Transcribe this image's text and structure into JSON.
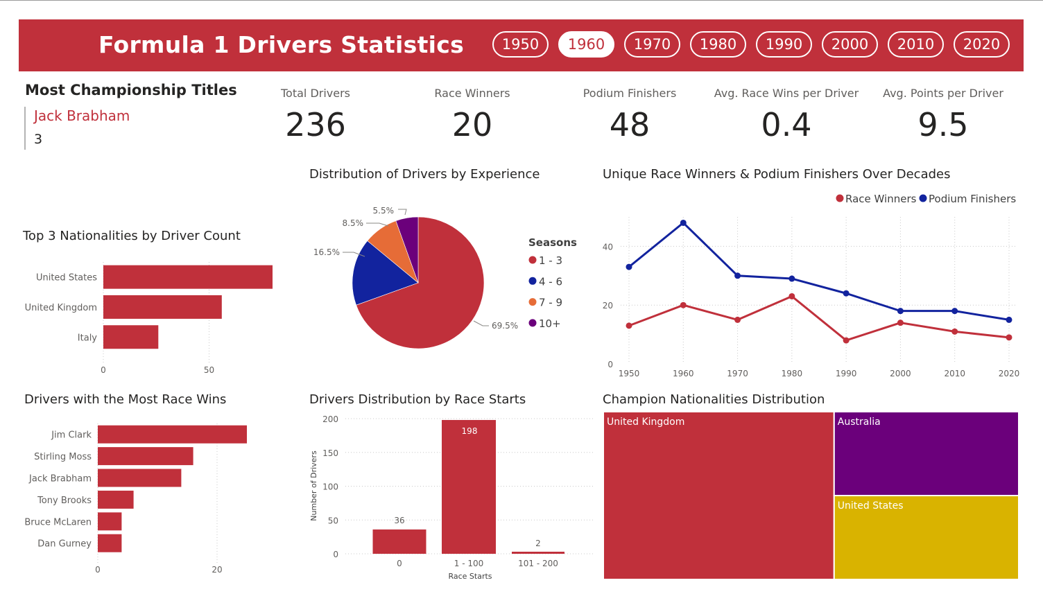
{
  "header": {
    "title": "Formula 1 Drivers Statistics",
    "decades": [
      {
        "label": "1950",
        "active": false
      },
      {
        "label": "1960",
        "active": true
      },
      {
        "label": "1970",
        "active": false
      },
      {
        "label": "1980",
        "active": false
      },
      {
        "label": "1990",
        "active": false
      },
      {
        "label": "2000",
        "active": false
      },
      {
        "label": "2010",
        "active": false
      },
      {
        "label": "2020",
        "active": false
      }
    ]
  },
  "most_titles": {
    "title": "Most Championship Titles",
    "driver": "Jack Brabham",
    "count": "3"
  },
  "kpis": [
    {
      "label": "Total Drivers",
      "value": "236"
    },
    {
      "label": "Race Winners",
      "value": "20"
    },
    {
      "label": "Podium Finishers",
      "value": "48"
    },
    {
      "label": "Avg. Race Wins per Driver",
      "value": "0.4"
    },
    {
      "label": "Avg. Points per Driver",
      "value": "9.5"
    }
  ],
  "colors": {
    "brand": "#c0303b",
    "blue": "#12239e",
    "orange": "#e66c37",
    "purple": "#6b007b",
    "yellow": "#d9b300"
  },
  "chart_data": [
    {
      "id": "nationalities",
      "type": "bar",
      "orientation": "horizontal",
      "title": "Top 3 Nationalities by Driver Count",
      "categories": [
        "United States",
        "United Kingdom",
        "Italy"
      ],
      "values": [
        80,
        56,
        26
      ],
      "xlim": [
        0,
        80
      ],
      "ticks": [
        0,
        50
      ],
      "grid": true
    },
    {
      "id": "experience",
      "type": "pie",
      "title": "Distribution of Drivers by Experience",
      "legend_title": "Seasons",
      "legend_position": "right",
      "slices": [
        {
          "label": "1 - 3",
          "value": 69.5,
          "display": "69.5%",
          "color": "#c0303b"
        },
        {
          "label": "4 - 6",
          "value": 16.5,
          "display": "16.5%",
          "color": "#12239e"
        },
        {
          "label": "7 - 9",
          "value": 8.5,
          "display": "8.5%",
          "color": "#e66c37"
        },
        {
          "label": "10+",
          "value": 5.5,
          "display": "5.5%",
          "color": "#6b007b"
        }
      ]
    },
    {
      "id": "decades",
      "type": "line",
      "title": "Unique Race Winners & Podium Finishers Over Decades",
      "legend_position": "top-right",
      "x": [
        "1950",
        "1960",
        "1970",
        "1980",
        "1990",
        "2000",
        "2010",
        "2020"
      ],
      "series": [
        {
          "name": "Race Winners",
          "color": "#c0303b",
          "values": [
            13,
            20,
            15,
            23,
            8,
            14,
            11,
            9
          ]
        },
        {
          "name": "Podium Finishers",
          "color": "#12239e",
          "values": [
            33,
            48,
            30,
            29,
            24,
            18,
            18,
            15
          ]
        }
      ],
      "ylim": [
        0,
        50
      ],
      "yticks": [
        0,
        20,
        40
      ],
      "grid": true
    },
    {
      "id": "race_wins",
      "type": "bar",
      "orientation": "horizontal",
      "title": "Drivers with the Most Race Wins",
      "categories": [
        "Jim Clark",
        "Stirling Moss",
        "Jack Brabham",
        "Tony Brooks",
        "Bruce McLaren",
        "Dan Gurney"
      ],
      "values": [
        25,
        16,
        14,
        6,
        4,
        4
      ],
      "xlim": [
        0,
        30
      ],
      "ticks": [
        0,
        20
      ],
      "grid": true
    },
    {
      "id": "race_starts",
      "type": "bar",
      "title": "Drivers Distribution by Race Starts",
      "categories": [
        "0",
        "1 - 100",
        "101 - 200"
      ],
      "values": [
        36,
        198,
        2
      ],
      "data_labels": [
        "36",
        "198",
        "2"
      ],
      "xlabel": "Race Starts",
      "ylabel": "Number of Drivers",
      "ylim": [
        0,
        200
      ],
      "yticks": [
        0,
        50,
        100,
        150,
        200
      ],
      "grid": true
    },
    {
      "id": "champions",
      "type": "treemap",
      "title": "Champion Nationalities Distribution",
      "items": [
        {
          "label": "United Kingdom",
          "value": 5,
          "color": "#c0303b"
        },
        {
          "label": "Australia",
          "value": 2,
          "color": "#6b007b"
        },
        {
          "label": "United States",
          "value": 2,
          "color": "#d9b300"
        }
      ]
    }
  ]
}
